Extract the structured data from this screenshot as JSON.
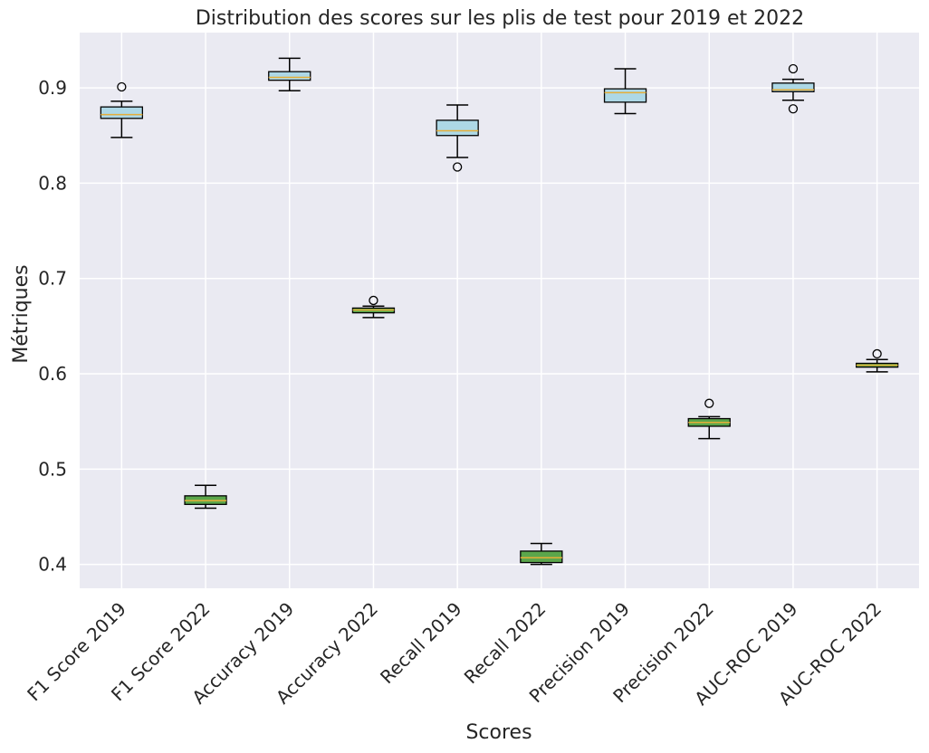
{
  "chart_data": {
    "type": "box",
    "title": "Distribution des scores sur les plis de test pour 2019 et 2022",
    "xlabel": "Scores",
    "ylabel": "Métriques",
    "ylim": [
      0.375,
      0.958
    ],
    "yticks": [
      0.4,
      0.5,
      0.6,
      0.7,
      0.8,
      0.9
    ],
    "grid": true,
    "colors": {
      "background": "#eaeaf2",
      "grid": "#ffffff",
      "box_2019": "#add8e6",
      "box_2022": "#5ba64b",
      "median": "#e5ae38",
      "whisker": "#000000"
    },
    "categories": [
      "F1 Score 2019",
      "F1 Score 2022",
      "Accuracy 2019",
      "Accuracy 2022",
      "Recall 2019",
      "Recall 2022",
      "Precision 2019",
      "Precision 2022",
      "AUC-ROC 2019",
      "AUC-ROC 2022"
    ],
    "boxes": [
      {
        "label": "F1 Score 2019",
        "whislo": 0.848,
        "q1": 0.868,
        "med": 0.872,
        "q3": 0.88,
        "whishi": 0.886,
        "fliers": [
          0.901
        ],
        "color": "#add8e6"
      },
      {
        "label": "F1 Score 2022",
        "whislo": 0.459,
        "q1": 0.463,
        "med": 0.467,
        "q3": 0.472,
        "whishi": 0.483,
        "fliers": [],
        "color": "#5ba64b"
      },
      {
        "label": "Accuracy 2019",
        "whislo": 0.897,
        "q1": 0.908,
        "med": 0.911,
        "q3": 0.917,
        "whishi": 0.931,
        "fliers": [],
        "color": "#add8e6"
      },
      {
        "label": "Accuracy 2022",
        "whislo": 0.659,
        "q1": 0.664,
        "med": 0.667,
        "q3": 0.669,
        "whishi": 0.671,
        "fliers": [
          0.677
        ],
        "color": "#5ba64b"
      },
      {
        "label": "Recall 2019",
        "whislo": 0.827,
        "q1": 0.85,
        "med": 0.855,
        "q3": 0.866,
        "whishi": 0.882,
        "fliers": [
          0.817
        ],
        "color": "#add8e6"
      },
      {
        "label": "Recall 2022",
        "whislo": 0.4,
        "q1": 0.402,
        "med": 0.407,
        "q3": 0.414,
        "whishi": 0.422,
        "fliers": [],
        "color": "#5ba64b"
      },
      {
        "label": "Precision 2019",
        "whislo": 0.873,
        "q1": 0.885,
        "med": 0.895,
        "q3": 0.899,
        "whishi": 0.92,
        "fliers": [],
        "color": "#add8e6"
      },
      {
        "label": "Precision 2022",
        "whislo": 0.532,
        "q1": 0.545,
        "med": 0.549,
        "q3": 0.553,
        "whishi": 0.555,
        "fliers": [
          0.569
        ],
        "color": "#5ba64b"
      },
      {
        "label": "AUC-ROC 2019",
        "whislo": 0.887,
        "q1": 0.896,
        "med": 0.898,
        "q3": 0.905,
        "whishi": 0.909,
        "fliers": [
          0.92,
          0.878
        ],
        "color": "#add8e6"
      },
      {
        "label": "AUC-ROC 2022",
        "whislo": 0.602,
        "q1": 0.607,
        "med": 0.609,
        "q3": 0.611,
        "whishi": 0.615,
        "fliers": [
          0.621
        ],
        "color": "#5ba64b"
      }
    ]
  }
}
